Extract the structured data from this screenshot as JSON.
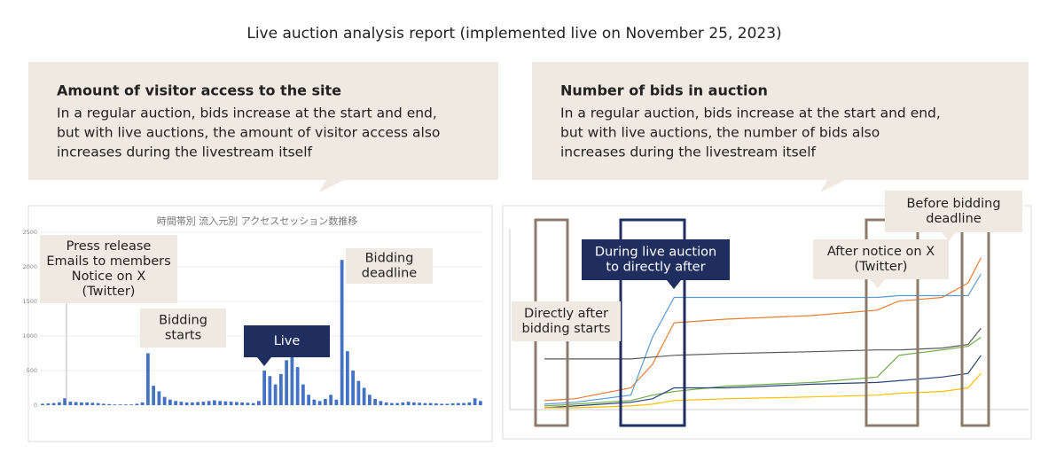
{
  "header": {
    "title": "Live auction analysis report (implemented live on November 25, 2023)"
  },
  "panels": [
    {
      "heading": "Amount of visitor access to the site",
      "lines": [
        "In a regular auction, bids increase at the start and end,",
        "but with live auctions, the amount of visitor access also",
        "increases during the livestream itself"
      ]
    },
    {
      "heading": "Number of bids in auction",
      "lines": [
        "In a regular auction, bids increase at the start and end,",
        "but with live auctions, the number of bids also",
        "increases during the livestream itself"
      ]
    }
  ],
  "annotations_left": [
    {
      "lines": [
        "Press release",
        "Emails to members",
        "Notice on X",
        "(Twitter)"
      ]
    },
    {
      "lines": [
        "Bidding",
        "starts"
      ]
    },
    {
      "lines": [
        "Live"
      ]
    },
    {
      "lines": [
        "Bidding",
        "deadline"
      ]
    }
  ],
  "annotations_right": [
    {
      "lines": [
        "Directly after",
        "bidding starts"
      ]
    },
    {
      "lines": [
        "During live auction",
        "to directly after"
      ]
    },
    {
      "lines": [
        "After notice on X",
        "(Twitter)"
      ]
    },
    {
      "lines": [
        "Before bidding",
        "deadline"
      ]
    }
  ],
  "chart_data": [
    {
      "type": "bar",
      "title": "時間帯別 流入元別 アクセスセッション数推移",
      "color": "#4472c4",
      "values": [
        20,
        25,
        30,
        40,
        100,
        50,
        45,
        40,
        40,
        35,
        30,
        20,
        15,
        10,
        10,
        10,
        10,
        20,
        40,
        750,
        280,
        200,
        120,
        80,
        60,
        50,
        40,
        40,
        45,
        50,
        60,
        70,
        60,
        55,
        50,
        45,
        40,
        35,
        30,
        60,
        500,
        420,
        300,
        450,
        650,
        700,
        550,
        300,
        150,
        80,
        60,
        90,
        150,
        80,
        2100,
        780,
        500,
        350,
        250,
        150,
        90,
        60,
        40,
        30,
        30,
        40,
        50,
        40,
        35,
        30,
        30,
        25,
        20,
        20,
        25,
        30,
        30,
        40,
        100,
        60
      ],
      "ylim": [
        0,
        2500
      ],
      "yticks": [
        0,
        500,
        1000,
        1500,
        2000,
        2500
      ],
      "grid": true
    },
    {
      "type": "line",
      "x": [
        8,
        15,
        28,
        33,
        38,
        50,
        70,
        85,
        90,
        100,
        106,
        109
      ],
      "xlim": [
        0,
        120
      ],
      "ylim": [
        0,
        100
      ],
      "series": [
        {
          "color": "#ed7d31",
          "values": [
            5,
            6,
            12,
            25,
            48,
            50,
            52,
            55,
            60,
            62,
            70,
            84
          ]
        },
        {
          "color": "#5b9bd5",
          "values": [
            3,
            4,
            8,
            40,
            62,
            62,
            62,
            62,
            63,
            63,
            63,
            75
          ]
        },
        {
          "color": "#595959",
          "values": [
            28,
            28,
            28,
            29,
            30,
            31,
            32,
            33,
            33,
            34,
            36,
            45
          ]
        },
        {
          "color": "#70ad47",
          "values": [
            2,
            3,
            5,
            8,
            10,
            13,
            15,
            18,
            30,
            33,
            35,
            40
          ]
        },
        {
          "color": "#264478",
          "values": [
            1,
            2,
            4,
            6,
            12,
            12,
            14,
            15,
            16,
            18,
            20,
            30
          ]
        },
        {
          "color": "#ffc000",
          "values": [
            1,
            1,
            2,
            3,
            5,
            6,
            7,
            8,
            9,
            10,
            12,
            20
          ]
        }
      ]
    }
  ]
}
